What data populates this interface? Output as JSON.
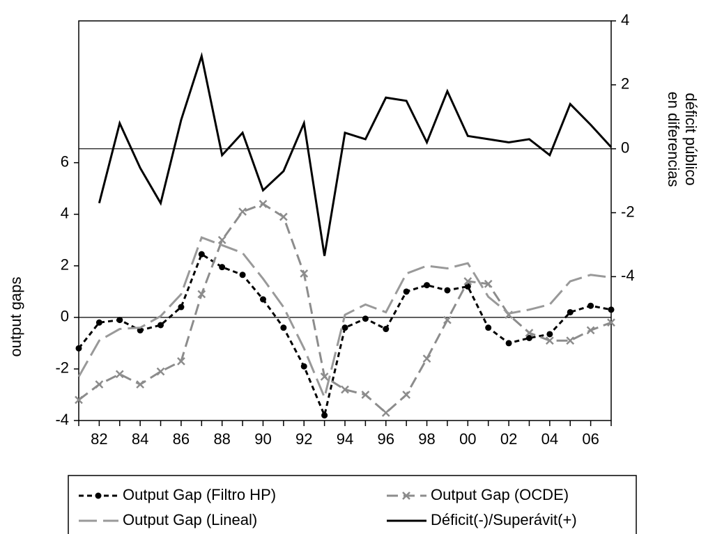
{
  "chart_data": {
    "type": "line",
    "xlabel": null,
    "ylabel": "output gaps",
    "y2label": [
      "déficit público",
      "en diferencias"
    ],
    "categories": [
      null,
      "82",
      null,
      "84",
      null,
      "86",
      null,
      "88",
      null,
      "90",
      null,
      "92",
      null,
      "94",
      null,
      "96",
      null,
      "98",
      null,
      "00",
      null,
      "02",
      null,
      "04",
      null,
      "06",
      null
    ],
    "ylim": [
      -4,
      11.5
    ],
    "yticks": [
      -4,
      -2,
      0,
      2,
      4,
      6
    ],
    "y2lim": [
      -8.5,
      4
    ],
    "y2ticks": [
      -4,
      -2,
      0,
      2,
      4
    ],
    "zero_lines": true,
    "series": [
      {
        "name": "Output Gap (Filtro HP)",
        "color": "#000000",
        "line_style": "short-dash",
        "marker": "circle",
        "values": [
          -1.2,
          -0.2,
          -0.1,
          -0.5,
          -0.3,
          0.4,
          2.45,
          1.95,
          1.65,
          0.7,
          -0.4,
          -1.9,
          -3.8,
          -0.4,
          -0.05,
          -0.45,
          1.0,
          1.25,
          1.05,
          1.2,
          -0.4,
          -1.0,
          -0.8,
          -0.65,
          0.2,
          0.45,
          0.3
        ]
      },
      {
        "name": "Output Gap (OCDE)",
        "color": "#8c8c8c",
        "line_style": "dash",
        "marker": "x",
        "values": [
          -3.2,
          -2.6,
          -2.2,
          -2.6,
          -2.1,
          -1.7,
          0.9,
          3.0,
          4.1,
          4.4,
          3.9,
          1.7,
          -2.3,
          -2.8,
          -3.0,
          -3.7,
          -3.0,
          -1.6,
          -0.1,
          1.4,
          1.3,
          0.1,
          -0.6,
          -0.9,
          -0.9,
          -0.5,
          -0.2
        ]
      },
      {
        "name": "Output Gap (Lineal)",
        "color": "#999999",
        "line_style": "long-dash",
        "marker": null,
        "values": [
          -2.3,
          -0.9,
          -0.45,
          -0.4,
          0.05,
          0.9,
          3.1,
          2.8,
          2.5,
          1.5,
          0.4,
          -1.2,
          -3.1,
          0.1,
          0.5,
          0.2,
          1.7,
          2.0,
          1.9,
          2.1,
          0.8,
          0.15,
          0.3,
          0.5,
          1.4,
          1.65,
          1.55
        ]
      },
      {
        "name": "Déficit(-)/Superávit(+)",
        "color": "#000000",
        "line_style": "solid",
        "marker": null,
        "axis": "y2",
        "values": [
          null,
          -1.7,
          0.8,
          -0.6,
          -1.7,
          0.9,
          2.9,
          -0.2,
          0.5,
          -1.3,
          -0.7,
          0.8,
          -3.35,
          0.5,
          0.3,
          1.6,
          1.5,
          0.2,
          1.8,
          0.4,
          0.3,
          0.2,
          0.3,
          -0.2,
          1.4,
          0.75,
          0.05
        ]
      }
    ]
  }
}
